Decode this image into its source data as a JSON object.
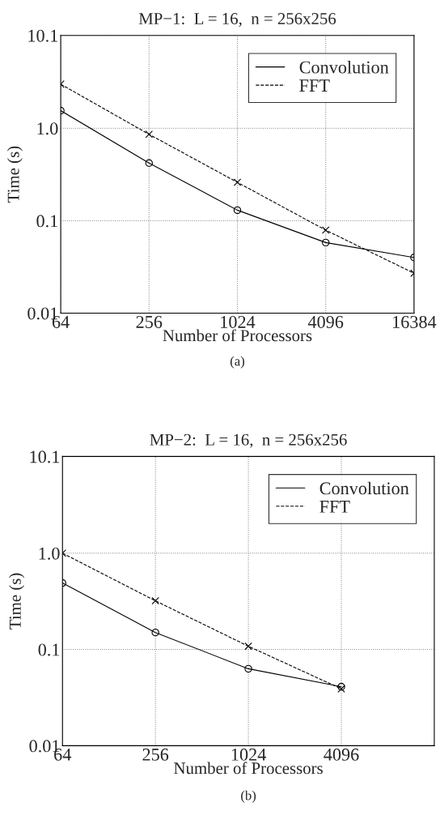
{
  "chart_data": [
    {
      "type": "line",
      "title": "MP−1:  L = 16,  n = 256x256",
      "xlabel": "Number of Processors",
      "ylabel": "Time (s)",
      "annotations": [
        "(a)"
      ],
      "log": "xy",
      "grid": true,
      "legend": "top right",
      "x": [
        64,
        256,
        1024,
        4096,
        16384
      ],
      "xlim": [
        64,
        16384
      ],
      "xticks": [
        64,
        256,
        1024,
        4096,
        16384
      ],
      "ylim": [
        0.01,
        10.1
      ],
      "yticks": [
        0.01,
        0.1,
        {
          "value": 1,
          "label": "1.0"
        },
        10.1
      ],
      "series": [
        {
          "name": "Convolution",
          "color": "#000000",
          "marker": "circle",
          "line_style": "solid",
          "values": [
            1.55,
            0.42,
            0.13,
            0.058,
            0.04
          ]
        },
        {
          "name": "FFT",
          "color": "#000000",
          "marker": "cross",
          "line_style": "dashed",
          "values": [
            3.0,
            0.86,
            0.26,
            0.079,
            0.027
          ]
        }
      ]
    },
    {
      "type": "line",
      "title": "MP−2:  L = 16,  n = 256x256",
      "xlabel": "Number of Processors",
      "ylabel": "Time (s)",
      "annotations": [
        "(b)"
      ],
      "log": "xy",
      "grid": true,
      "legend": "top right",
      "x": [
        64,
        256,
        1024,
        4096
      ],
      "xlim": [
        64,
        16384
      ],
      "xticks": [
        64,
        256,
        1024,
        4096
      ],
      "ylim": [
        0.01,
        10.1
      ],
      "yticks": [
        0.01,
        0.1,
        {
          "value": 1,
          "label": "1.0"
        },
        10.1
      ],
      "series": [
        {
          "name": "Convolution",
          "color": "#000000",
          "marker": "circle",
          "line_style": "solid",
          "values": [
            0.49,
            0.15,
            0.063,
            0.041
          ]
        },
        {
          "name": "FFT",
          "color": "#000000",
          "marker": "cross",
          "line_style": "dashed",
          "values": [
            1.0,
            0.32,
            0.108,
            0.039
          ]
        }
      ]
    }
  ]
}
